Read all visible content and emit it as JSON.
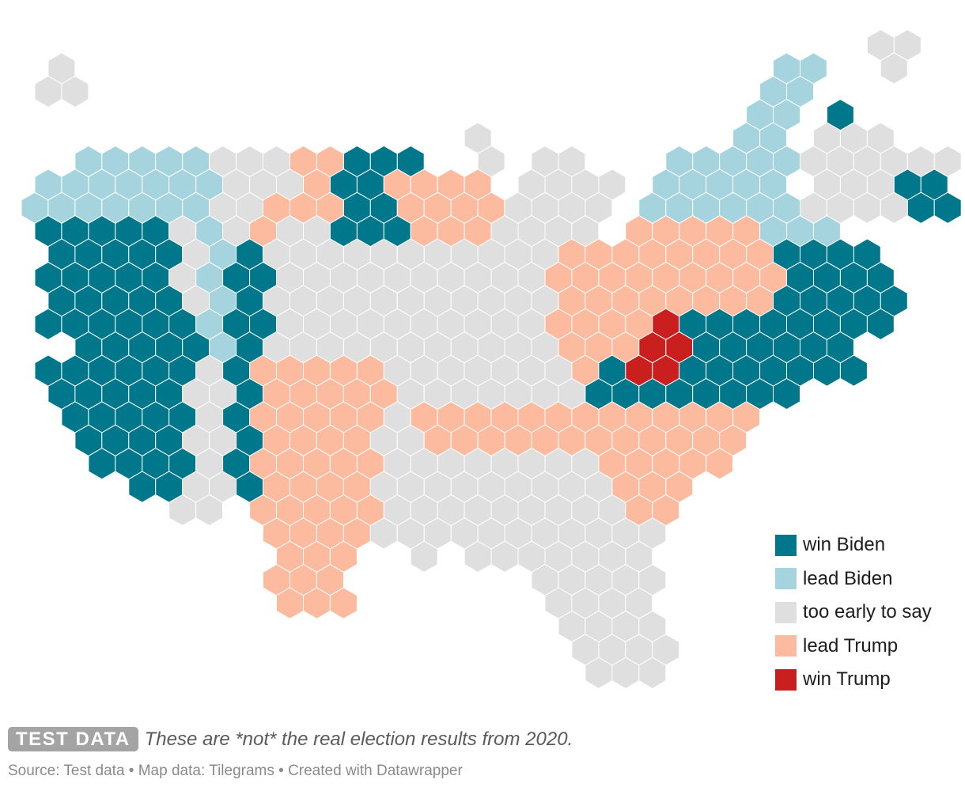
{
  "legend": {
    "items": [
      {
        "key": "wb",
        "label": "win Biden",
        "color": "#00778b"
      },
      {
        "key": "lb",
        "label": "lead Biden",
        "color": "#a6d4de"
      },
      {
        "key": "te",
        "label": "too early to say",
        "color": "#dfdfdf"
      },
      {
        "key": "lt",
        "label": "lead Trump",
        "color": "#fcbb9f"
      },
      {
        "key": "wt",
        "label": "win Trump",
        "color": "#c91f1f"
      }
    ]
  },
  "footer": {
    "badge": "TEST DATA",
    "note": "These are *not* the real election results from 2020.",
    "source": "Source: Test data • Map data: Tilegrams • Created with Datawrapper"
  }
}
